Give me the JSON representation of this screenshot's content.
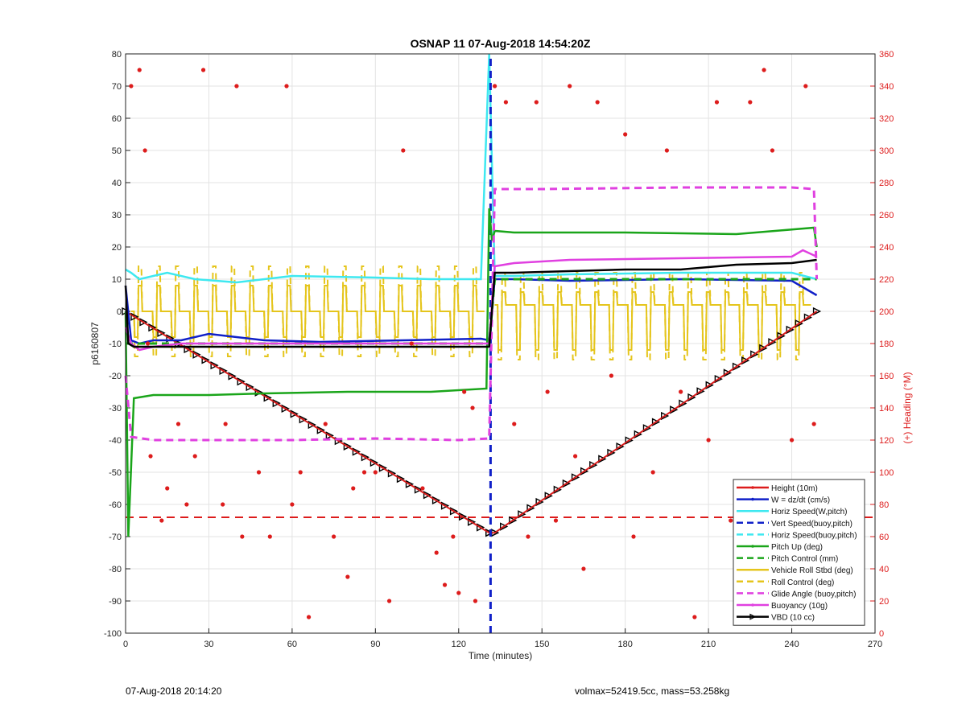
{
  "chart_data": {
    "type": "line",
    "title": "OSNAP 11 07-Aug-2018 14:54:20Z",
    "xlabel": "Time (minutes)",
    "ylabel": "p6160807",
    "ylabel_right": "(+) Heading (°M)",
    "xlim": [
      0,
      270
    ],
    "ylim": [
      -100,
      80
    ],
    "ylim_right": [
      0,
      360
    ],
    "x_ticks": [
      "0",
      "30",
      "60",
      "90",
      "120",
      "150",
      "180",
      "210",
      "240",
      "270"
    ],
    "y_ticks": [
      "-100",
      "-90",
      "-80",
      "-70",
      "-60",
      "-50",
      "-40",
      "-30",
      "-20",
      "-10",
      "0",
      "10",
      "20",
      "30",
      "40",
      "50",
      "60",
      "70",
      "80"
    ],
    "y_right_ticks": [
      "0",
      "20",
      "40",
      "60",
      "80",
      "100",
      "120",
      "140",
      "160",
      "180",
      "200",
      "220",
      "240",
      "260",
      "280",
      "300",
      "320",
      "340",
      "360"
    ],
    "grid": true,
    "legend_position": "bottom-right",
    "dive_apogee_minutes": 131.5,
    "target_depth_line": -64,
    "colors": {
      "red": "#dd1c1c",
      "blue": "#1020c8",
      "cyan": "#3ee8f0",
      "green": "#1aa51a",
      "gold": "#e5c51c",
      "magenta": "#e040e0",
      "black": "#000000"
    },
    "series": [
      {
        "name": "Height (10m)",
        "color": "#dd1c1c",
        "style": "solid-dots",
        "x": [
          0,
          131,
          133,
          249
        ],
        "values": [
          0,
          -68.8,
          -68.8,
          0
        ]
      },
      {
        "name": "W = dz/dt (cm/s)",
        "color": "#1020c8",
        "style": "solid",
        "x": [
          0,
          2,
          5,
          10,
          20,
          30,
          50,
          70,
          100,
          128,
          131,
          133,
          140,
          160,
          200,
          240,
          249
        ],
        "values": [
          8,
          -9,
          -10,
          -9,
          -9,
          -7,
          -9,
          -9.5,
          -9,
          -8.5,
          -9,
          10,
          10,
          9.5,
          10,
          9.5,
          5
        ]
      },
      {
        "name": "Horiz Speed(W,pitch)",
        "color": "#3ee8f0",
        "style": "solid",
        "x": [
          0,
          2,
          5,
          10,
          15,
          25,
          40,
          60,
          90,
          110,
          128,
          131,
          133,
          140,
          160,
          200,
          240,
          249
        ],
        "values": [
          13,
          12,
          10,
          11,
          12,
          10,
          9,
          11,
          10.5,
          10,
          10,
          80,
          11,
          11,
          11.5,
          12,
          12,
          10
        ]
      },
      {
        "name": "Vert Speed(buoy,pitch)",
        "color": "#1020c8",
        "style": "dashed",
        "x": [
          131.5,
          131.5
        ],
        "values": [
          -100,
          80
        ]
      },
      {
        "name": "Horiz Speed(buoy,pitch)",
        "color": "#3ee8f0",
        "style": "dashed",
        "x": [
          0,
          131,
          133,
          249
        ],
        "values": [
          0,
          0,
          0,
          0
        ],
        "hidden": true
      },
      {
        "name": "Pitch Up (deg)",
        "color": "#1aa51a",
        "style": "solid",
        "x": [
          0,
          1,
          3,
          10,
          30,
          50,
          80,
          110,
          130,
          131,
          132,
          133,
          140,
          180,
          220,
          248,
          249
        ],
        "values": [
          0,
          -70,
          -27,
          -26,
          -26,
          -25.5,
          -25,
          -25,
          -24,
          32,
          22,
          25,
          24.5,
          24.5,
          24,
          26,
          20
        ]
      },
      {
        "name": "Pitch Control (mm)",
        "color": "#1aa51a",
        "style": "dashed",
        "x": [
          0,
          131,
          133,
          249
        ],
        "values": [
          -10,
          -10,
          10,
          10
        ]
      },
      {
        "name": "Vehicle Roll Stbd (deg)",
        "color": "#e5c51c",
        "style": "solid",
        "x": [
          0,
          131,
          133,
          249
        ],
        "values": [
          0,
          0,
          0,
          0
        ]
      },
      {
        "name": "Roll Control (deg)",
        "color": "#e5c51c",
        "style": "dashed",
        "x": [
          0,
          131,
          133,
          249
        ],
        "values": [
          0,
          0,
          0,
          0
        ]
      },
      {
        "name": "Glide Angle (buoy,pitch)",
        "color": "#e040e0",
        "style": "dashed",
        "x": [
          0,
          2,
          10,
          30,
          60,
          90,
          120,
          131,
          133,
          150,
          200,
          240,
          248,
          249
        ],
        "values": [
          -20,
          -39,
          -40,
          -40,
          -40,
          -39.5,
          -40,
          -39.5,
          38,
          38,
          38.5,
          38.5,
          38,
          10
        ]
      },
      {
        "name": "Buoyancy (10g)",
        "color": "#e040e0",
        "style": "solid",
        "x": [
          0,
          2,
          5,
          10,
          20,
          40,
          80,
          131,
          133,
          140,
          160,
          200,
          240,
          244,
          249
        ],
        "values": [
          -5,
          -10,
          -12,
          -11,
          -10,
          -10,
          -10,
          -10,
          14,
          15,
          16,
          16.5,
          17,
          19,
          17
        ]
      },
      {
        "name": "VBD (10 cc)",
        "color": "#000000",
        "style": "solid",
        "x": [
          0,
          1,
          3,
          131,
          133,
          140,
          180,
          200,
          220,
          240,
          249
        ],
        "values": [
          8,
          -10,
          -11,
          -11,
          12,
          12,
          13,
          13,
          14.5,
          15,
          16
        ]
      },
      {
        "name": "Heading",
        "color": "#dd1c1c",
        "style": "dots",
        "axis": "right",
        "x": [
          2,
          5,
          7,
          8,
          9,
          13,
          15,
          19,
          22,
          25,
          28,
          35,
          36,
          40,
          42,
          48,
          52,
          58,
          60,
          63,
          66,
          72,
          75,
          80,
          82,
          86,
          90,
          95,
          100,
          103,
          107,
          112,
          115,
          118,
          120,
          122,
          125,
          126,
          133,
          137,
          140,
          145,
          148,
          152,
          155,
          160,
          162,
          165,
          170,
          175,
          180,
          183,
          190,
          195,
          200,
          205,
          210,
          213,
          218,
          222,
          225,
          230,
          233,
          236,
          240,
          245,
          248
        ],
        "values": [
          340,
          350,
          300,
          180,
          110,
          70,
          90,
          130,
          80,
          110,
          350,
          80,
          130,
          340,
          60,
          100,
          60,
          340,
          80,
          100,
          10,
          130,
          60,
          35,
          90,
          100,
          100,
          20,
          300,
          180,
          90,
          50,
          30,
          60,
          25,
          150,
          140,
          20,
          340,
          330,
          130,
          60,
          330,
          150,
          70,
          340,
          110,
          40,
          330,
          160,
          310,
          60,
          100,
          300,
          150,
          10,
          120,
          330,
          70,
          50,
          330,
          350,
          300,
          40,
          120,
          340,
          130
        ]
      }
    ]
  },
  "footer": {
    "timestamp": "07-Aug-2018 20:14:20",
    "summary": "volmax=52419.5cc, mass=53.258kg"
  }
}
